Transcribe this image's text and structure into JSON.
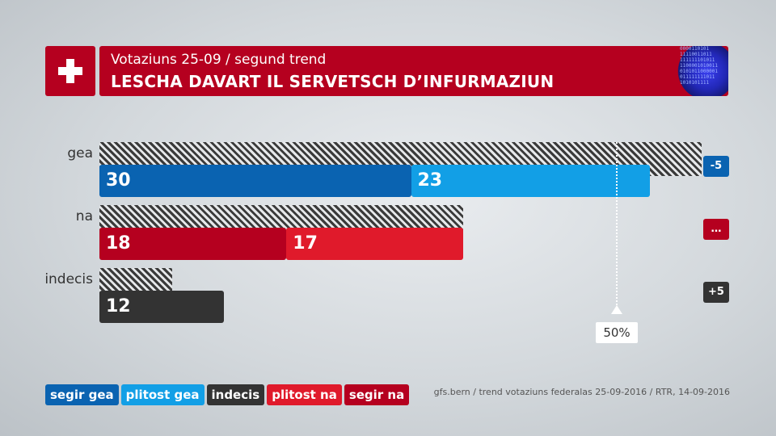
{
  "header": {
    "subtitle": "Votaziuns 25-09 / segund trend",
    "title": "LESCHA DAVART IL SERVETSCH D’INFURMAZIUN",
    "globe_lines": [
      "0000110101",
      "11110011011",
      "111111101011",
      "1100001010011",
      "0101011000001",
      "011111111011",
      "1010101111"
    ]
  },
  "colors": {
    "red": "#b5001f",
    "segir_gea": "#0a63b1",
    "plitost_gea": "#129fe6",
    "indecis": "#333333",
    "plitost_na": "#e01a2b",
    "segir_na": "#b5001f"
  },
  "chart_data": {
    "type": "bar",
    "categories": [
      "gea",
      "na",
      "indecis"
    ],
    "series": [
      {
        "name": "segir gea",
        "values": [
          30,
          null,
          null
        ]
      },
      {
        "name": "plitost gea",
        "values": [
          23,
          null,
          null
        ]
      },
      {
        "name": "segir na",
        "values": [
          null,
          18,
          null
        ]
      },
      {
        "name": "plitost na",
        "values": [
          null,
          17,
          null
        ]
      },
      {
        "name": "indecis",
        "values": [
          null,
          null,
          12
        ]
      }
    ],
    "first_trend_totals": [
      58,
      35,
      7
    ],
    "changes": [
      "-5",
      "…",
      "+5"
    ],
    "reference_line": {
      "value": 50,
      "label": "50%"
    },
    "xlim": [
      0,
      60
    ]
  },
  "legend": [
    "segir gea",
    "plitost gea",
    "indecis",
    "plitost na",
    "segir na"
  ],
  "source": "gfs.bern / trend votaziuns federalas 25-09-2016 / RTR, 14-09-2016"
}
